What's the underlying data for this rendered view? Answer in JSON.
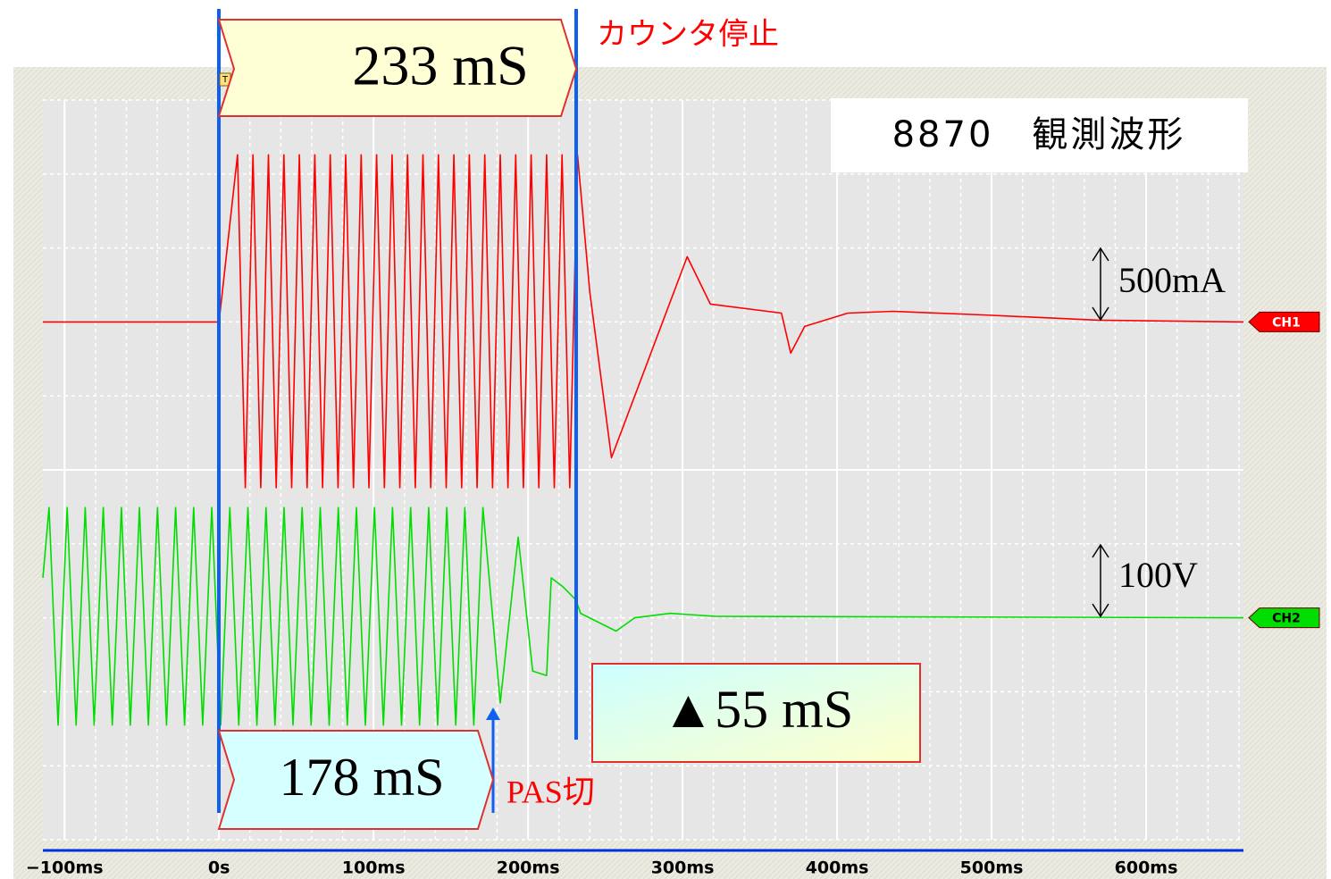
{
  "chart_data": {
    "type": "line",
    "xlim": [
      -114,
      663
    ],
    "xticks": [
      {
        "value": -100,
        "label": "−100ms"
      },
      {
        "value": 0,
        "label": "0s"
      },
      {
        "value": 100,
        "label": "100ms"
      },
      {
        "value": 200,
        "label": "200ms"
      },
      {
        "value": 300,
        "label": "300ms"
      },
      {
        "value": 400,
        "label": "400ms"
      },
      {
        "value": 500,
        "label": "500ms"
      },
      {
        "value": 600,
        "label": "600ms"
      }
    ],
    "ylim": [
      -3500,
      1500
    ],
    "y2lim": [
      -300,
      700
    ],
    "grid": true,
    "series": [
      {
        "name": "CH1",
        "color": "#ff0000",
        "scale": "500mA",
        "x": [
          -114,
          0,
          12,
          17,
          22,
          27,
          32,
          37,
          42,
          47,
          52,
          57,
          62,
          67,
          72,
          77,
          82,
          87,
          92,
          97,
          102,
          107,
          112,
          117,
          122,
          127,
          132,
          137,
          142,
          147,
          152,
          157,
          162,
          167,
          172,
          177,
          182,
          187,
          192,
          197,
          202,
          207,
          212,
          217,
          222,
          227,
          232,
          240,
          254,
          303,
          318,
          364,
          370,
          379,
          407,
          436,
          494,
          569,
          663
        ],
        "values": [
          0,
          0,
          1130,
          -1120,
          1130,
          -1120,
          1130,
          -1120,
          1130,
          -1120,
          1130,
          -1120,
          1130,
          -1120,
          1130,
          -1120,
          1130,
          -1120,
          1130,
          -1120,
          1130,
          -1120,
          1130,
          -1120,
          1130,
          -1120,
          1130,
          -1120,
          1130,
          -1120,
          1130,
          -1120,
          1130,
          -1120,
          1130,
          -1120,
          1130,
          -1120,
          1130,
          -1120,
          1130,
          -1120,
          1130,
          -1120,
          1130,
          -1120,
          1130,
          200,
          -918,
          441,
          121,
          60,
          -211,
          -30,
          60,
          72,
          48,
          12,
          0
        ]
      },
      {
        "name": "CH2",
        "color": "#00dd00",
        "scale": "100V",
        "axis": "y2",
        "x": [
          -114,
          -110,
          -104.2,
          -98.3,
          -92.5,
          -86.6,
          -80.8,
          -74.9,
          -69.1,
          -63.2,
          -57.4,
          -51.5,
          -45.7,
          -39.8,
          -34,
          -28.1,
          -22.3,
          -16.4,
          -10.6,
          -4.7,
          1.1,
          7,
          12.8,
          18.7,
          24.5,
          30.4,
          36.2,
          42.1,
          47.9,
          53.8,
          59.6,
          65.5,
          71.3,
          77.2,
          83,
          88.9,
          94.7,
          100.6,
          106.4,
          112.3,
          118.1,
          124,
          129.8,
          135.7,
          141.5,
          147.4,
          153.2,
          159.1,
          164.9,
          170.8,
          182,
          193.6,
          203,
          212,
          215,
          222.5,
          231,
          234,
          257,
          269,
          292,
          321,
          663
        ],
        "values": [
          54,
          149,
          -145,
          149,
          -145,
          149,
          -145,
          149,
          -145,
          149,
          -145,
          149,
          -145,
          149,
          -145,
          149,
          -145,
          149,
          -145,
          149,
          -145,
          149,
          -145,
          149,
          -145,
          149,
          -145,
          149,
          -145,
          149,
          -145,
          149,
          -145,
          149,
          -145,
          149,
          -145,
          149,
          -145,
          149,
          -145,
          149,
          -145,
          149,
          -145,
          149,
          -145,
          149,
          -145,
          149,
          -115,
          109,
          -72,
          -78,
          54,
          42,
          24,
          6,
          -18,
          0,
          6,
          2,
          0
        ]
      }
    ],
    "annotations": {
      "title": "8870　観測波形",
      "counter_stop": "カウンタ停止",
      "total": "233 mS",
      "pas_time": "178 mS",
      "pas_off": "PAS切",
      "delta": "▲55 mS",
      "trigger": "T"
    }
  }
}
